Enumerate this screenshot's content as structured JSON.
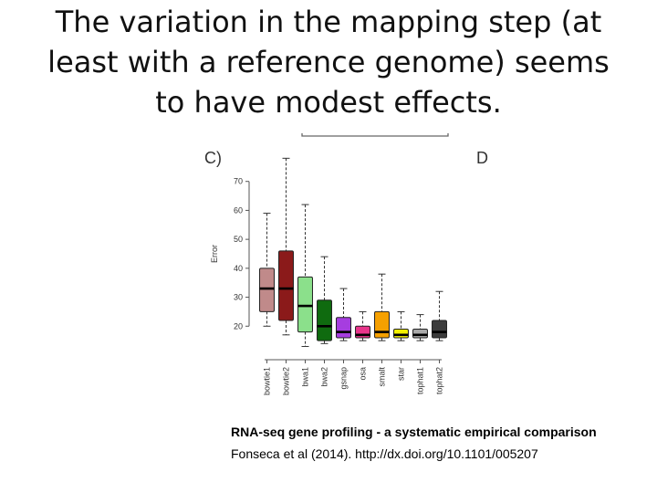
{
  "slide": {
    "title_lines": [
      "The variation in the mapping step (at",
      "least with a reference genome) seems",
      "to have modest effects."
    ]
  },
  "chart_data": {
    "type": "boxplot",
    "panel_label": "C)",
    "next_panel_label": "D",
    "ylabel": "Error",
    "xlabel": "",
    "ylim": [
      10,
      80
    ],
    "yticks": [
      20,
      30,
      40,
      50,
      60,
      70
    ],
    "grid": false,
    "legend": "none",
    "categories": [
      "bowtie1",
      "bowtie2",
      "bwa1",
      "bwa2",
      "gsnap",
      "osa",
      "smalt",
      "star",
      "tophat1",
      "tophat2"
    ],
    "boxes": [
      {
        "name": "bowtie1",
        "whisker_low": 20,
        "q1": 25,
        "median": 33,
        "q3": 40,
        "whisker_high": 59,
        "color": "#c08a8a"
      },
      {
        "name": "bowtie2",
        "whisker_low": 17,
        "q1": 22,
        "median": 33,
        "q3": 46,
        "whisker_high": 78,
        "color": "#8b1a1a"
      },
      {
        "name": "bwa1",
        "whisker_low": 13,
        "q1": 18,
        "median": 27,
        "q3": 37,
        "whisker_high": 62,
        "color": "#8be08b"
      },
      {
        "name": "bwa2",
        "whisker_low": 14,
        "q1": 15,
        "median": 20,
        "q3": 29,
        "whisker_high": 44,
        "color": "#0f6b0f"
      },
      {
        "name": "gsnap",
        "whisker_low": 15,
        "q1": 16,
        "median": 18,
        "q3": 23,
        "whisker_high": 33,
        "color": "#a63de0"
      },
      {
        "name": "osa",
        "whisker_low": 15,
        "q1": 16,
        "median": 17,
        "q3": 20,
        "whisker_high": 25,
        "color": "#e8348a"
      },
      {
        "name": "smalt",
        "whisker_low": 15,
        "q1": 16,
        "median": 18,
        "q3": 25,
        "whisker_high": 38,
        "color": "#f5a000"
      },
      {
        "name": "star",
        "whisker_low": 15,
        "q1": 16,
        "median": 17,
        "q3": 19,
        "whisker_high": 25,
        "color": "#f2f000"
      },
      {
        "name": "tophat1",
        "whisker_low": 15,
        "q1": 16,
        "median": 17,
        "q3": 19,
        "whisker_high": 24,
        "color": "#aaaaaa"
      },
      {
        "name": "tophat2",
        "whisker_low": 15,
        "q1": 16,
        "median": 18,
        "q3": 22,
        "whisker_high": 32,
        "color": "#3c3c3c"
      }
    ]
  },
  "citation": {
    "title": "RNA-seq gene profiling - a systematic empirical comparison",
    "reference": "Fonseca et al (2014). http://dx.doi.org/10.1101/005207"
  }
}
